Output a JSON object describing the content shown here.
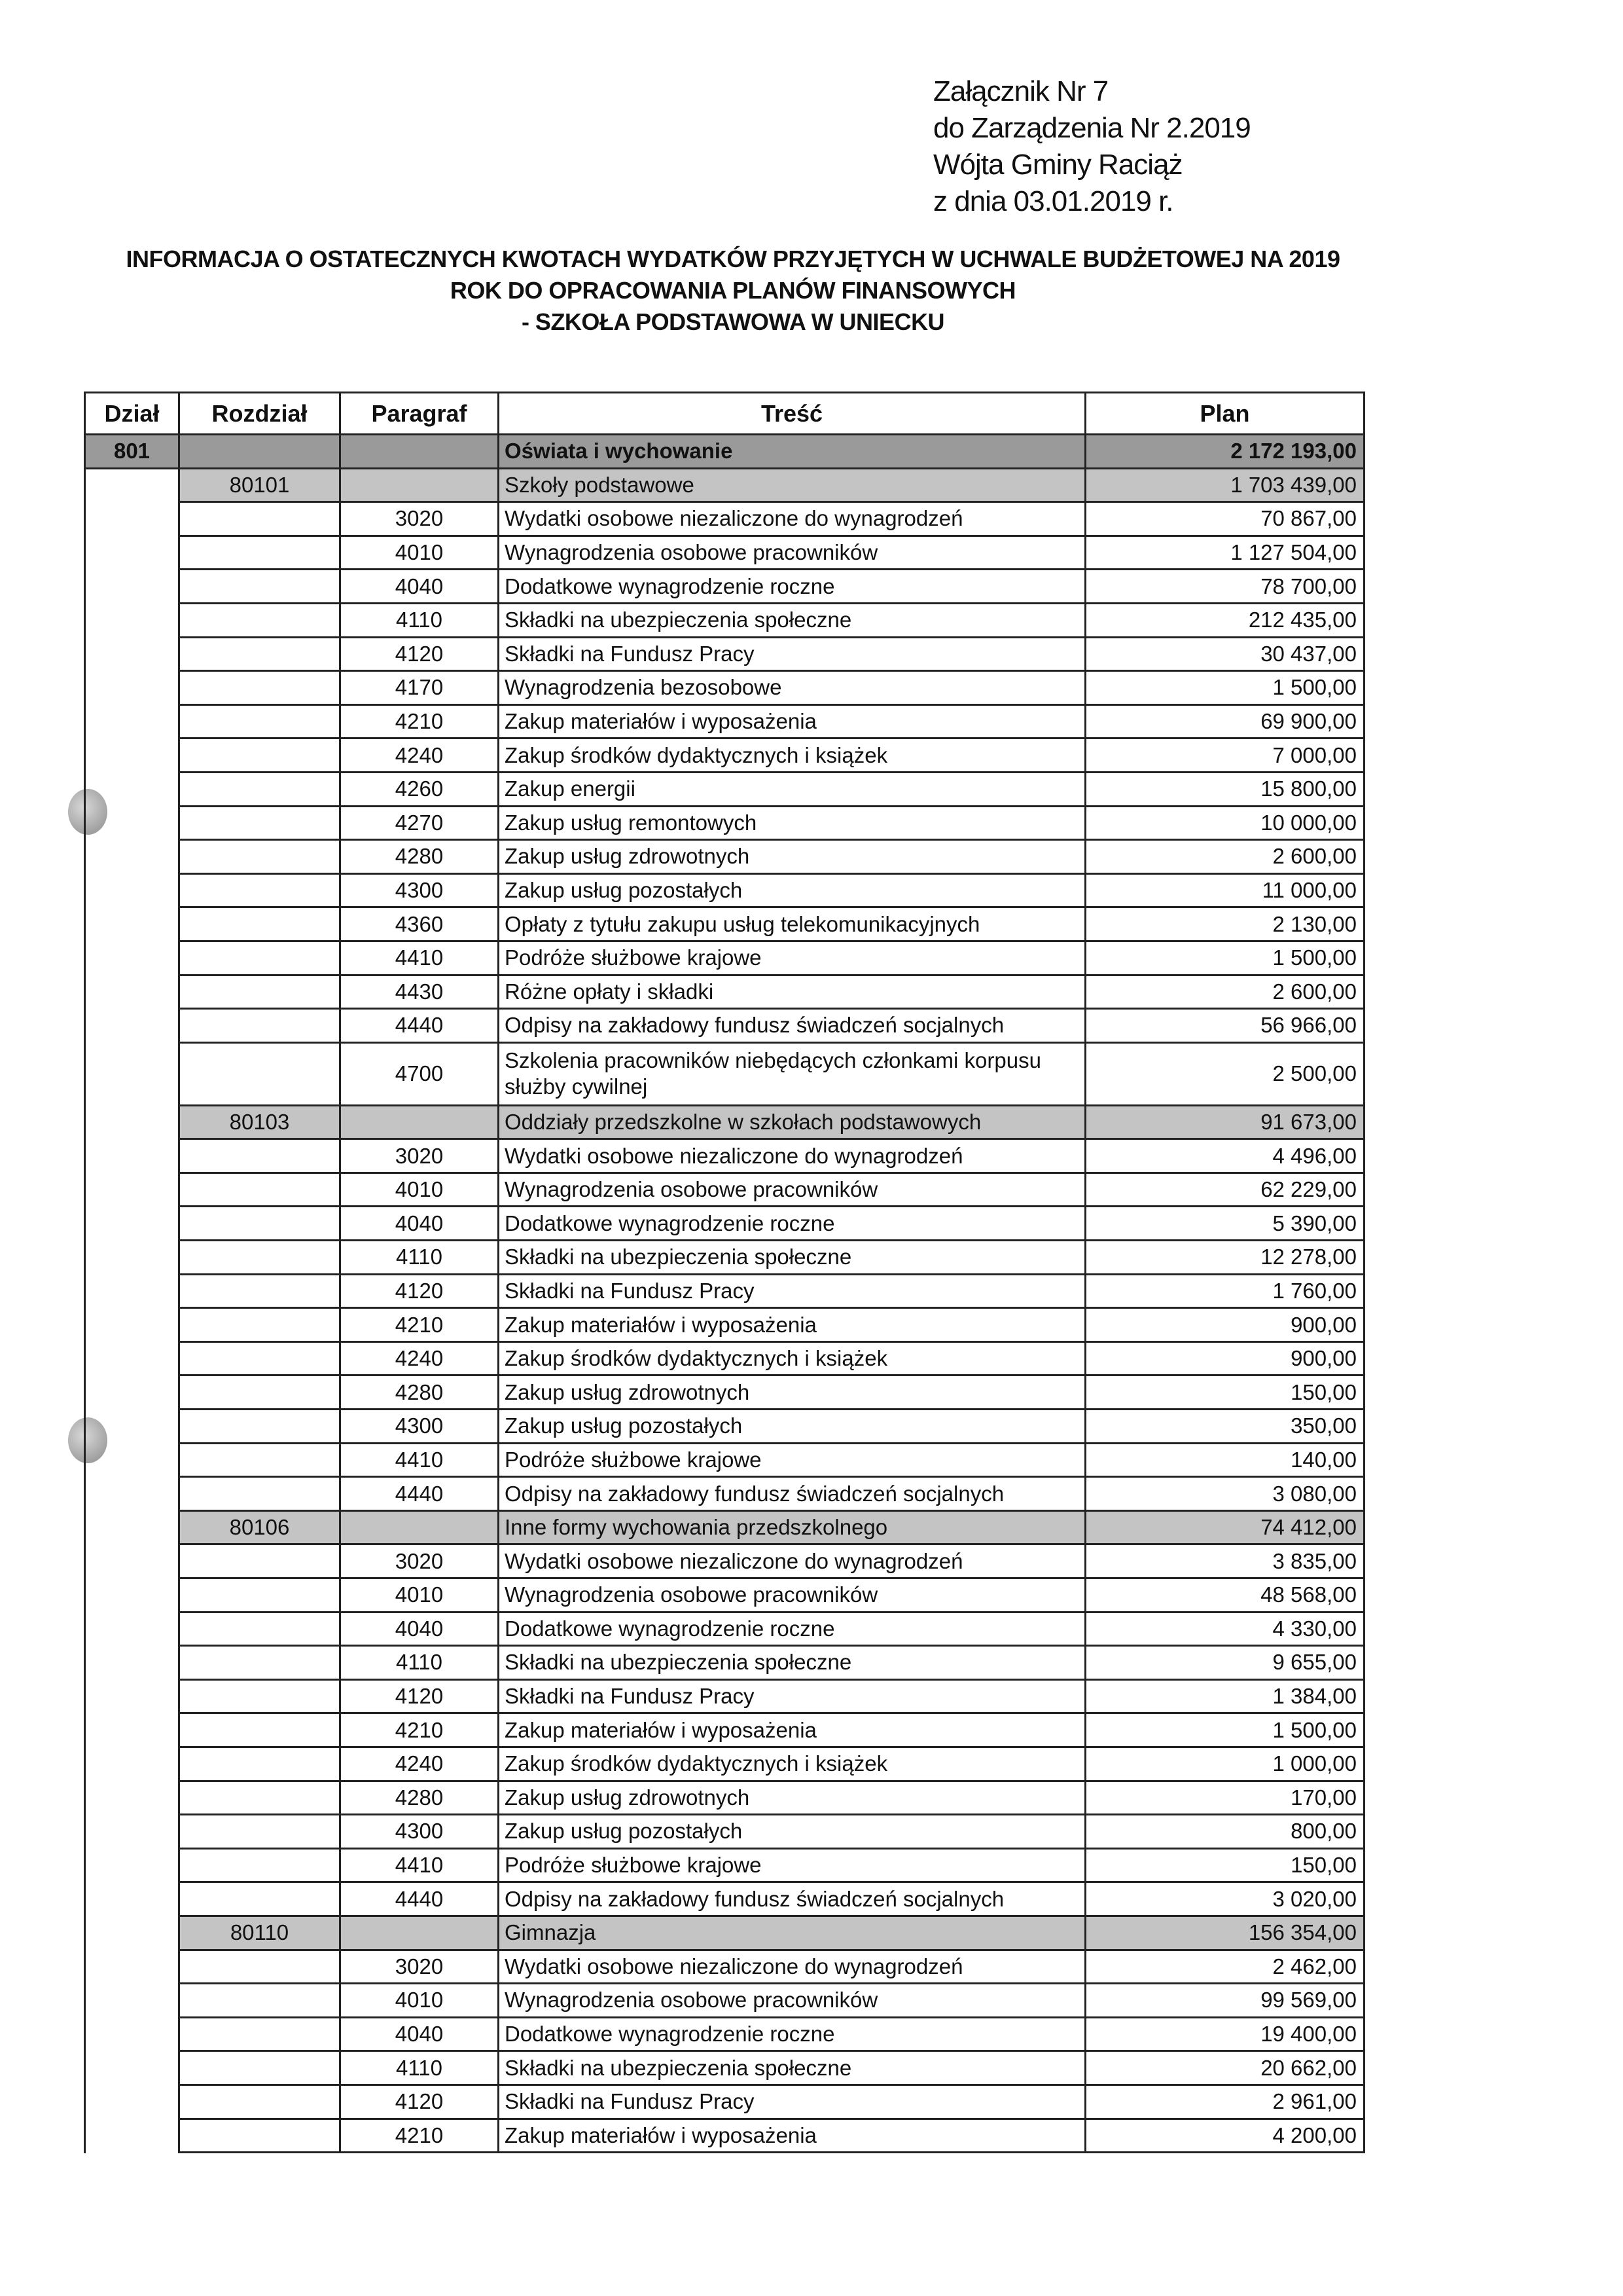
{
  "annex": {
    "line1": "Załącznik Nr 7",
    "line2": "do Zarządzenia Nr 2.2019",
    "line3": "Wójta Gminy Raciąż",
    "line4": "z dnia 03.01.2019 r."
  },
  "title": {
    "line1": "INFORMACJA O OSTATECZNYCH KWOTACH WYDATKÓW PRZYJĘTYCH W  UCHWALE BUDŻETOWEJ NA 2019",
    "line2": "ROK DO OPRACOWANIA  PLANÓW FINANSOWYCH",
    "line3": "- SZKOŁA PODSTAWOWA W UNIECKU"
  },
  "table": {
    "headers": [
      "Dział",
      "Rozdział",
      "Paragraf",
      "Treść",
      "Plan"
    ],
    "rows": [
      {
        "type": "dzial",
        "dzial": "801",
        "rozdzial": "",
        "paragraf": "",
        "tresc": "Oświata i wychowanie",
        "plan": "2 172 193,00"
      },
      {
        "type": "rozdzial",
        "dzial": "",
        "rozdzial": "80101",
        "paragraf": "",
        "tresc": "Szkoły podstawowe",
        "plan": "1 703 439,00"
      },
      {
        "type": "item",
        "paragraf": "3020",
        "tresc": "Wydatki osobowe niezaliczone do wynagrodzeń",
        "plan": "70 867,00"
      },
      {
        "type": "item",
        "paragraf": "4010",
        "tresc": "Wynagrodzenia osobowe pracowników",
        "plan": "1 127 504,00"
      },
      {
        "type": "item",
        "paragraf": "4040",
        "tresc": "Dodatkowe wynagrodzenie roczne",
        "plan": "78 700,00"
      },
      {
        "type": "item",
        "paragraf": "4110",
        "tresc": "Składki na ubezpieczenia społeczne",
        "plan": "212 435,00"
      },
      {
        "type": "item",
        "paragraf": "4120",
        "tresc": "Składki na Fundusz Pracy",
        "plan": "30 437,00"
      },
      {
        "type": "item",
        "paragraf": "4170",
        "tresc": "Wynagrodzenia bezosobowe",
        "plan": "1 500,00"
      },
      {
        "type": "item",
        "paragraf": "4210",
        "tresc": "Zakup materiałów i wyposażenia",
        "plan": "69 900,00"
      },
      {
        "type": "item",
        "paragraf": "4240",
        "tresc": "Zakup środków dydaktycznych i książek",
        "plan": "7 000,00"
      },
      {
        "type": "item",
        "paragraf": "4260",
        "tresc": "Zakup energii",
        "plan": "15 800,00"
      },
      {
        "type": "item",
        "paragraf": "4270",
        "tresc": "Zakup usług remontowych",
        "plan": "10 000,00"
      },
      {
        "type": "item",
        "paragraf": "4280",
        "tresc": "Zakup usług zdrowotnych",
        "plan": "2 600,00"
      },
      {
        "type": "item",
        "paragraf": "4300",
        "tresc": "Zakup usług pozostałych",
        "plan": "11 000,00"
      },
      {
        "type": "item",
        "paragraf": "4360",
        "tresc": "Opłaty z tytułu zakupu usług telekomunikacyjnych",
        "plan": "2 130,00"
      },
      {
        "type": "item",
        "paragraf": "4410",
        "tresc": "Podróże służbowe krajowe",
        "plan": "1 500,00"
      },
      {
        "type": "item",
        "paragraf": "4430",
        "tresc": "Różne opłaty i składki",
        "plan": "2 600,00"
      },
      {
        "type": "item",
        "paragraf": "4440",
        "tresc": "Odpisy na zakładowy fundusz świadczeń socjalnych",
        "plan": "56 966,00"
      },
      {
        "type": "item",
        "double": true,
        "paragraf": "4700",
        "tresc": "Szkolenia pracowników niebędących członkami korpusu służby cywilnej",
        "plan": "2 500,00"
      },
      {
        "type": "rozdzial",
        "rozdzial": "80103",
        "paragraf": "",
        "tresc": "Oddziały przedszkolne w szkołach podstawowych",
        "plan": "91 673,00"
      },
      {
        "type": "item",
        "paragraf": "3020",
        "tresc": "Wydatki osobowe niezaliczone do wynagrodzeń",
        "plan": "4 496,00"
      },
      {
        "type": "item",
        "paragraf": "4010",
        "tresc": "Wynagrodzenia osobowe pracowników",
        "plan": "62 229,00"
      },
      {
        "type": "item",
        "paragraf": "4040",
        "tresc": "Dodatkowe wynagrodzenie roczne",
        "plan": "5 390,00"
      },
      {
        "type": "item",
        "paragraf": "4110",
        "tresc": "Składki na ubezpieczenia społeczne",
        "plan": "12 278,00"
      },
      {
        "type": "item",
        "paragraf": "4120",
        "tresc": "Składki na Fundusz Pracy",
        "plan": "1 760,00"
      },
      {
        "type": "item",
        "paragraf": "4210",
        "tresc": "Zakup materiałów i wyposażenia",
        "plan": "900,00"
      },
      {
        "type": "item",
        "paragraf": "4240",
        "tresc": "Zakup środków dydaktycznych i książek",
        "plan": "900,00"
      },
      {
        "type": "item",
        "paragraf": "4280",
        "tresc": "Zakup usług zdrowotnych",
        "plan": "150,00"
      },
      {
        "type": "item",
        "paragraf": "4300",
        "tresc": "Zakup usług pozostałych",
        "plan": "350,00"
      },
      {
        "type": "item",
        "paragraf": "4410",
        "tresc": "Podróże służbowe krajowe",
        "plan": "140,00"
      },
      {
        "type": "item",
        "paragraf": "4440",
        "tresc": "Odpisy na zakładowy fundusz świadczeń socjalnych",
        "plan": "3 080,00"
      },
      {
        "type": "rozdzial",
        "rozdzial": "80106",
        "paragraf": "",
        "tresc": "Inne formy wychowania przedszkolnego",
        "plan": "74 412,00"
      },
      {
        "type": "item",
        "paragraf": "3020",
        "tresc": "Wydatki osobowe niezaliczone do wynagrodzeń",
        "plan": "3 835,00"
      },
      {
        "type": "item",
        "paragraf": "4010",
        "tresc": "Wynagrodzenia osobowe pracowników",
        "plan": "48 568,00"
      },
      {
        "type": "item",
        "paragraf": "4040",
        "tresc": "Dodatkowe wynagrodzenie roczne",
        "plan": "4 330,00"
      },
      {
        "type": "item",
        "paragraf": "4110",
        "tresc": "Składki na ubezpieczenia społeczne",
        "plan": "9 655,00"
      },
      {
        "type": "item",
        "paragraf": "4120",
        "tresc": "Składki na Fundusz Pracy",
        "plan": "1 384,00"
      },
      {
        "type": "item",
        "paragraf": "4210",
        "tresc": "Zakup materiałów i wyposażenia",
        "plan": "1 500,00"
      },
      {
        "type": "item",
        "paragraf": "4240",
        "tresc": "Zakup środków dydaktycznych i książek",
        "plan": "1 000,00"
      },
      {
        "type": "item",
        "paragraf": "4280",
        "tresc": "Zakup usług zdrowotnych",
        "plan": "170,00"
      },
      {
        "type": "item",
        "paragraf": "4300",
        "tresc": "Zakup usług pozostałych",
        "plan": "800,00"
      },
      {
        "type": "item",
        "paragraf": "4410",
        "tresc": "Podróże służbowe krajowe",
        "plan": "150,00"
      },
      {
        "type": "item",
        "paragraf": "4440",
        "tresc": "Odpisy na zakładowy fundusz świadczeń socjalnych",
        "plan": "3 020,00"
      },
      {
        "type": "rozdzial",
        "rozdzial": "80110",
        "paragraf": "",
        "tresc": "Gimnazja",
        "plan": "156 354,00"
      },
      {
        "type": "item",
        "paragraf": "3020",
        "tresc": "Wydatki osobowe niezaliczone do wynagrodzeń",
        "plan": "2 462,00"
      },
      {
        "type": "item",
        "paragraf": "4010",
        "tresc": "Wynagrodzenia osobowe pracowników",
        "plan": "99 569,00"
      },
      {
        "type": "item",
        "paragraf": "4040",
        "tresc": "Dodatkowe wynagrodzenie roczne",
        "plan": "19 400,00"
      },
      {
        "type": "item",
        "paragraf": "4110",
        "tresc": "Składki na ubezpieczenia społeczne",
        "plan": "20 662,00"
      },
      {
        "type": "item",
        "paragraf": "4120",
        "tresc": "Składki na Fundusz Pracy",
        "plan": "2 961,00"
      },
      {
        "type": "item",
        "paragraf": "4210",
        "tresc": "Zakup materiałów i wyposażenia",
        "plan": "4 200,00"
      }
    ]
  }
}
